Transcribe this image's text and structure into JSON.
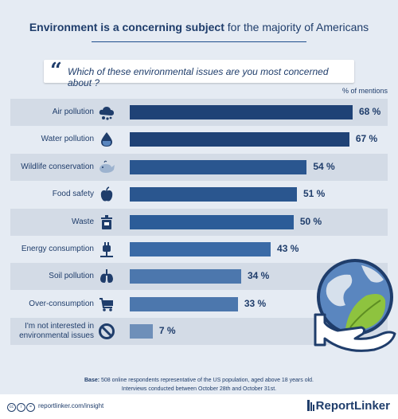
{
  "header": {
    "title_bold": "Environment is a concerning subject",
    "title_rest": " for the majority of Americans"
  },
  "question": {
    "text": "Which of these environmental issues are you most concerned about ?"
  },
  "units_note": "% of mentions",
  "chart_data": {
    "type": "bar",
    "orientation": "horizontal",
    "categories": [
      "Air pollution",
      "Water pollution",
      "Wildlife conservation",
      "Food safety",
      "Waste",
      "Energy consumption",
      "Soil pollution",
      "Over-consumption",
      "I'm not interested in environmental issues"
    ],
    "category_lines": [
      [
        "Air pollution"
      ],
      [
        "Water pollution"
      ],
      [
        "Wildlife conservation"
      ],
      [
        "Food safety"
      ],
      [
        "Waste"
      ],
      [
        "Energy consumption"
      ],
      [
        "Soil pollution"
      ],
      [
        "Over-consumption"
      ],
      [
        "I'm not interested in",
        "environmental issues"
      ]
    ],
    "values": [
      68,
      67,
      54,
      51,
      50,
      43,
      34,
      33,
      7
    ],
    "value_labels": [
      "68 %",
      "67 %",
      "54 %",
      "51 %",
      "50 %",
      "43 %",
      "34 %",
      "33 %",
      "7 %"
    ],
    "xlim": [
      0,
      100
    ],
    "unit": "% of mentions",
    "bar_colors": [
      "#1f4276",
      "#1f4276",
      "#2a568f",
      "#2a568f",
      "#2c5c98",
      "#3a6aa6",
      "#4c77ad",
      "#4c77ad",
      "#6e8fb9"
    ],
    "icons": [
      "cloud-pollution-icon",
      "water-drop-icon",
      "whale-icon",
      "apple-icon",
      "trash-icon",
      "plug-icon",
      "lungs-icon",
      "shopping-cart-icon",
      "no-sign-icon"
    ]
  },
  "footer": {
    "base_label": "Base:",
    "base_text": " 508 online respondents representative of the US population, aged above 18 years old.",
    "base_text_2": "Interviews conducted between October 28th and October 31st.",
    "url": "reportlinker.com/insight",
    "brand": "ReportLinker"
  },
  "colors": {
    "accent": "#1f3d6b",
    "background": "#e5ebf3",
    "stripe": "#d3dbe6"
  }
}
